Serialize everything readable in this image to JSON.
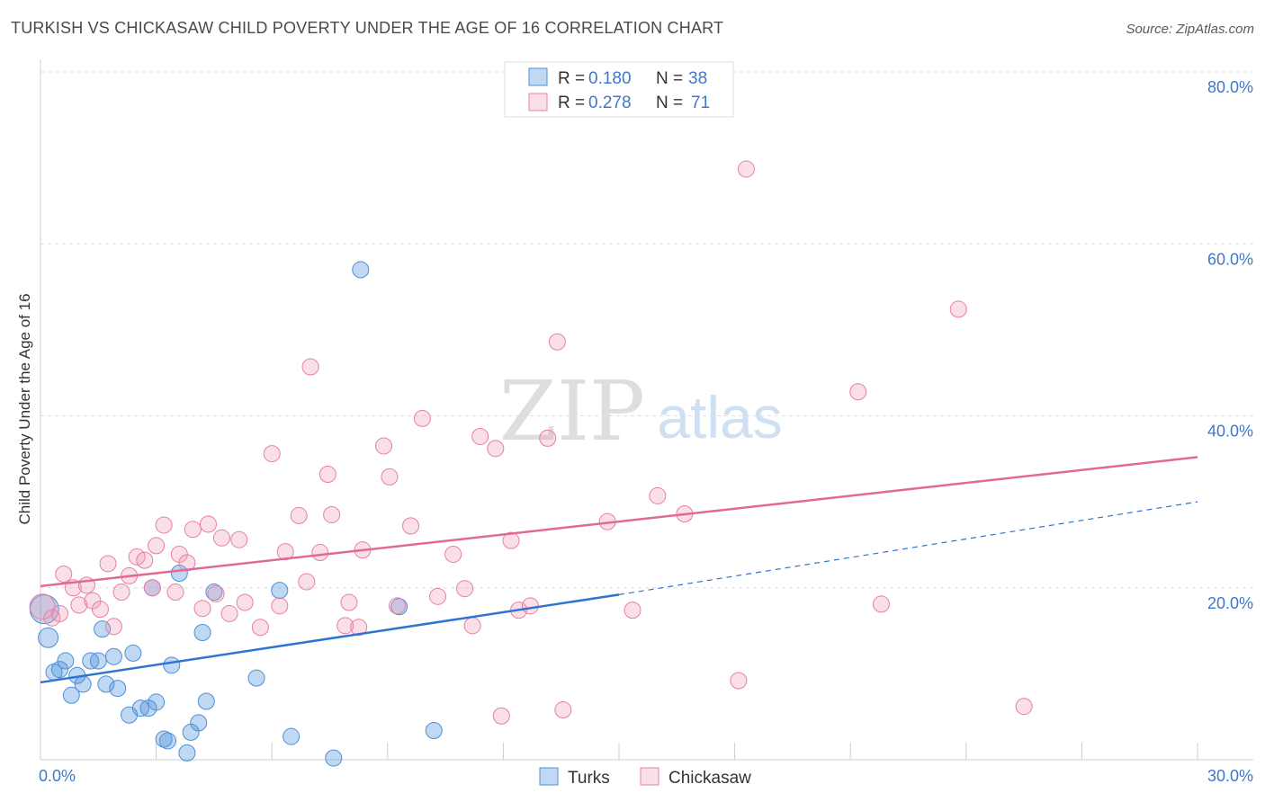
{
  "header": {
    "title": "TURKISH VS CHICKASAW CHILD POVERTY UNDER THE AGE OF 16 CORRELATION CHART",
    "source": "Source: ZipAtlas.com"
  },
  "watermark": {
    "zip": "ZIP",
    "atlas": "atlas"
  },
  "colors": {
    "turks": "#4a90d9",
    "turks_fill": "rgba(74,144,217,0.35)",
    "turks_line": "#2f74d0",
    "chickasaw": "#e77fa3",
    "chickasaw_fill": "rgba(240,150,180,0.30)",
    "chickasaw_line": "#e06a93",
    "tick_label": "#3f78c8",
    "grid": "#dddddd"
  },
  "legend": {
    "rows": [
      {
        "r_label": "R =",
        "r_value": "0.180",
        "n_label": "N =",
        "n_value": "38",
        "series": "turks"
      },
      {
        "r_label": "R =",
        "r_value": "0.278",
        "n_label": "N =",
        "n_value": "71",
        "series": "chickasaw"
      }
    ]
  },
  "chart_data": {
    "type": "scatter",
    "title": "TURKISH VS CHICKASAW CHILD POVERTY UNDER THE AGE OF 16 CORRELATION CHART",
    "xlabel": "",
    "ylabel": "Child Poverty Under the Age of 16",
    "xlim": [
      0,
      30
    ],
    "ylim": [
      0,
      80
    ],
    "x_tick_labels": [
      "0.0%",
      "30.0%"
    ],
    "y_ticks": [
      20,
      40,
      60,
      80
    ],
    "y_tick_labels": [
      "20.0%",
      "40.0%",
      "60.0%",
      "80.0%"
    ],
    "grid": true,
    "legend_position": "top-center",
    "bottom_legend": [
      "Turks",
      "Chickasaw"
    ],
    "series": [
      {
        "name": "Turks",
        "color": "#4a90d9",
        "trend": {
          "x": [
            0,
            15
          ],
          "y": [
            9.0,
            19.2
          ],
          "dashed_to": [
            30,
            30.0
          ]
        },
        "points": [
          [
            0.1,
            17.5,
            16
          ],
          [
            0.2,
            14.2,
            11
          ],
          [
            0.35,
            10.2,
            9
          ],
          [
            0.5,
            10.5,
            9
          ],
          [
            0.65,
            11.5,
            9
          ],
          [
            0.8,
            7.5,
            9
          ],
          [
            0.95,
            9.8,
            9
          ],
          [
            1.1,
            8.8,
            9
          ],
          [
            1.3,
            11.5,
            9
          ],
          [
            1.5,
            11.5,
            9
          ],
          [
            1.6,
            15.2,
            9
          ],
          [
            1.7,
            8.8,
            9
          ],
          [
            1.9,
            12.0,
            9
          ],
          [
            2.0,
            8.3,
            9
          ],
          [
            2.3,
            5.2,
            9
          ],
          [
            2.4,
            12.4,
            9
          ],
          [
            2.6,
            6.0,
            9
          ],
          [
            2.8,
            6.0,
            9
          ],
          [
            2.9,
            20.0,
            9
          ],
          [
            3.0,
            6.7,
            9
          ],
          [
            3.2,
            2.4,
            9
          ],
          [
            3.3,
            2.2,
            9
          ],
          [
            3.4,
            11.0,
            9
          ],
          [
            3.6,
            21.7,
            9
          ],
          [
            3.8,
            0.8,
            9
          ],
          [
            3.9,
            3.2,
            9
          ],
          [
            4.1,
            4.3,
            9
          ],
          [
            4.2,
            14.8,
            9
          ],
          [
            4.3,
            6.8,
            9
          ],
          [
            4.5,
            19.5,
            9
          ],
          [
            5.6,
            9.5,
            9
          ],
          [
            6.2,
            19.7,
            9
          ],
          [
            6.5,
            2.7,
            9
          ],
          [
            7.6,
            0.2,
            9
          ],
          [
            8.3,
            57.0,
            9
          ],
          [
            9.3,
            17.8,
            9
          ],
          [
            10.2,
            3.4,
            9
          ],
          [
            4.8,
            23.0,
            0
          ]
        ]
      },
      {
        "name": "Chickasaw",
        "color": "#e77fa3",
        "trend": {
          "x": [
            0,
            30
          ],
          "y": [
            20.2,
            35.2
          ]
        },
        "points": [
          [
            0.05,
            17.8,
            14
          ],
          [
            0.3,
            16.5,
            9
          ],
          [
            0.5,
            17.0,
            9
          ],
          [
            0.6,
            21.6,
            9
          ],
          [
            0.85,
            20.0,
            9
          ],
          [
            1.0,
            18.0,
            9
          ],
          [
            1.2,
            20.3,
            9
          ],
          [
            1.35,
            18.5,
            9
          ],
          [
            1.55,
            17.5,
            9
          ],
          [
            1.75,
            22.8,
            9
          ],
          [
            1.9,
            15.5,
            9
          ],
          [
            2.1,
            19.5,
            9
          ],
          [
            2.3,
            21.4,
            9
          ],
          [
            2.5,
            23.6,
            9
          ],
          [
            2.7,
            23.2,
            9
          ],
          [
            2.9,
            20.0,
            9
          ],
          [
            3.0,
            24.9,
            9
          ],
          [
            3.2,
            27.3,
            9
          ],
          [
            3.5,
            19.5,
            9
          ],
          [
            3.6,
            23.9,
            9
          ],
          [
            3.8,
            22.9,
            9
          ],
          [
            3.95,
            26.8,
            9
          ],
          [
            4.2,
            17.6,
            9
          ],
          [
            4.35,
            27.4,
            9
          ],
          [
            4.55,
            19.3,
            9
          ],
          [
            4.7,
            25.8,
            9
          ],
          [
            4.9,
            17.0,
            9
          ],
          [
            5.15,
            25.6,
            9
          ],
          [
            5.3,
            18.3,
            9
          ],
          [
            5.7,
            15.4,
            9
          ],
          [
            6.0,
            35.6,
            9
          ],
          [
            6.2,
            17.9,
            9
          ],
          [
            6.35,
            24.2,
            9
          ],
          [
            6.7,
            28.4,
            9
          ],
          [
            6.9,
            20.7,
            9
          ],
          [
            7.0,
            45.7,
            9
          ],
          [
            7.25,
            24.1,
            9
          ],
          [
            7.45,
            33.2,
            9
          ],
          [
            7.55,
            28.5,
            9
          ],
          [
            7.9,
            15.6,
            9
          ],
          [
            8.0,
            18.3,
            9
          ],
          [
            8.25,
            15.4,
            9
          ],
          [
            8.35,
            24.4,
            9
          ],
          [
            8.9,
            36.5,
            9
          ],
          [
            9.05,
            32.9,
            9
          ],
          [
            9.25,
            17.9,
            9
          ],
          [
            9.6,
            27.2,
            9
          ],
          [
            9.9,
            39.7,
            9
          ],
          [
            10.3,
            19.0,
            9
          ],
          [
            10.7,
            23.9,
            9
          ],
          [
            11.0,
            19.9,
            9
          ],
          [
            11.2,
            15.6,
            9
          ],
          [
            11.4,
            37.6,
            9
          ],
          [
            11.8,
            36.2,
            9
          ],
          [
            11.95,
            5.1,
            9
          ],
          [
            12.2,
            25.5,
            9
          ],
          [
            12.4,
            17.4,
            9
          ],
          [
            12.7,
            17.9,
            9
          ],
          [
            13.15,
            37.4,
            9
          ],
          [
            13.4,
            48.6,
            9
          ],
          [
            13.55,
            5.8,
            9
          ],
          [
            14.7,
            27.7,
            9
          ],
          [
            15.35,
            17.4,
            9
          ],
          [
            16.0,
            30.7,
            9
          ],
          [
            16.7,
            28.6,
            9
          ],
          [
            18.1,
            9.2,
            9
          ],
          [
            18.3,
            68.7,
            9
          ],
          [
            21.2,
            42.8,
            9
          ],
          [
            21.8,
            18.1,
            9
          ],
          [
            23.8,
            52.4,
            9
          ],
          [
            25.5,
            6.2,
            9
          ]
        ]
      }
    ]
  }
}
